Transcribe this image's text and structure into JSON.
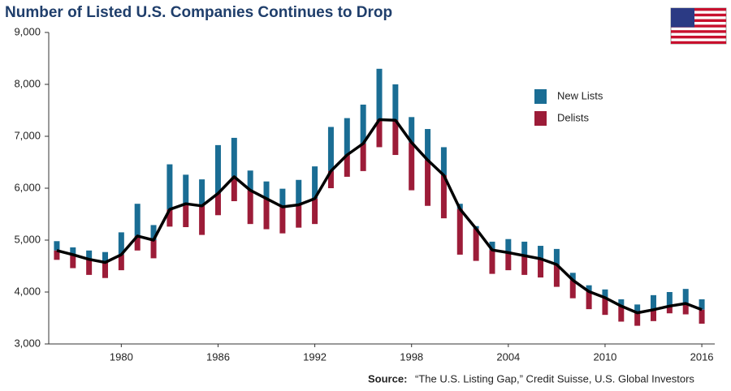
{
  "chart_data": {
    "type": "bar",
    "title": "Number of Listed U.S. Companies Continues to Drop",
    "x": [
      1976,
      1977,
      1978,
      1979,
      1980,
      1981,
      1982,
      1983,
      1984,
      1985,
      1986,
      1987,
      1988,
      1989,
      1990,
      1991,
      1992,
      1993,
      1994,
      1995,
      1996,
      1997,
      1998,
      1999,
      2000,
      2001,
      2002,
      2003,
      2004,
      2005,
      2006,
      2007,
      2008,
      2009,
      2010,
      2011,
      2012,
      2013,
      2014,
      2015,
      2016
    ],
    "values": [
      4800,
      4720,
      4630,
      4570,
      4720,
      5080,
      5000,
      5590,
      5700,
      5660,
      5900,
      6220,
      5960,
      5800,
      5640,
      5680,
      5800,
      6330,
      6640,
      6860,
      7320,
      7310,
      6880,
      6540,
      6250,
      5600,
      5220,
      4810,
      4760,
      4700,
      4640,
      4530,
      4230,
      4010,
      3890,
      3730,
      3600,
      3660,
      3730,
      3780,
      3660
    ],
    "line_color": "#000000",
    "series": [
      {
        "name": "New Lists",
        "color": "#1a6d94",
        "direction": "up",
        "values": [
          180,
          140,
          170,
          200,
          430,
          620,
          290,
          870,
          560,
          510,
          930,
          750,
          380,
          330,
          350,
          480,
          620,
          850,
          710,
          750,
          980,
          690,
          490,
          600,
          540,
          100,
          50,
          160,
          260,
          270,
          250,
          300,
          140,
          120,
          160,
          130,
          160,
          280,
          270,
          280,
          200
        ]
      },
      {
        "name": "Delists",
        "color": "#9c1c38",
        "direction": "down",
        "values": [
          180,
          260,
          300,
          300,
          300,
          280,
          350,
          330,
          450,
          560,
          420,
          470,
          650,
          590,
          510,
          440,
          490,
          330,
          420,
          530,
          530,
          670,
          920,
          880,
          830,
          880,
          620,
          460,
          340,
          370,
          360,
          430,
          350,
          340,
          330,
          300,
          250,
          220,
          140,
          210,
          270
        ]
      }
    ],
    "xlim": [
      1975.5,
      2016.5
    ],
    "xticks": [
      1980,
      1986,
      1992,
      1998,
      2004,
      2010,
      2016
    ],
    "ylim": [
      3000,
      9000
    ],
    "yticks": [
      {
        "value": 3000,
        "label": "3,000"
      },
      {
        "value": 4000,
        "label": "4,000"
      },
      {
        "value": 5000,
        "label": "5,000"
      },
      {
        "value": 6000,
        "label": "6,000"
      },
      {
        "value": 7000,
        "label": "7,000"
      },
      {
        "value": 8000,
        "label": "8,000"
      },
      {
        "value": 9000,
        "label": "9,000"
      }
    ],
    "grid": false,
    "legend": "right",
    "source_label": "Source:",
    "source": "“The U.S. Listing Gap,” Credit Suisse, U.S. Global Investors"
  }
}
